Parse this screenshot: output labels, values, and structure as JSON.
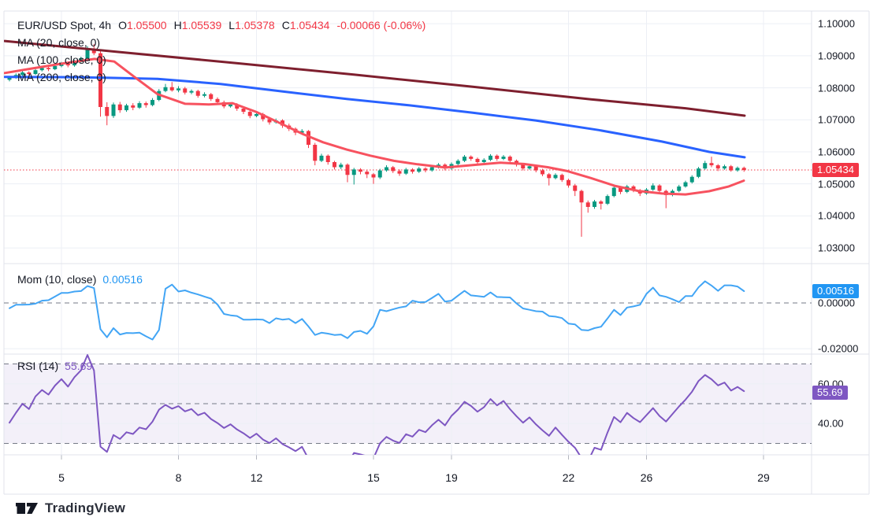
{
  "header": {
    "symbol": "EUR/USD Spot, 4h",
    "o_label": "O",
    "o": "1.05500",
    "h_label": "H",
    "h": "1.05539",
    "l_label": "L",
    "l": "1.05378",
    "c_label": "C",
    "c": "1.05434",
    "change": "-0.00066 (-0.06%)"
  },
  "legend": {
    "ma20": "MA (20, close, 0)",
    "ma100": "MA (100, close, 0)",
    "ma200": "MA (200, close, 0)",
    "mom_label": "Mom (10, close)",
    "mom_value": "0.00516",
    "rsi_label": "RSI (14)",
    "rsi_value": "55.69"
  },
  "badges": {
    "price": "1.05434",
    "mom": "0.00516",
    "rsi": "55.69"
  },
  "footer": {
    "logo_text": "TradingView"
  },
  "colors": {
    "up": "#089981",
    "down": "#f23645",
    "ma20": "#f7525f",
    "ma100": "#2962ff",
    "ma200": "#7e1f2e",
    "mom_line": "#42a5f5",
    "rsi_line": "#7e57c2",
    "rsi_band": "#7e57c2",
    "price_line": "#f23645",
    "text": "#131722",
    "grid": "#eceff5",
    "border": "#e0e3eb",
    "dashed": "#757a87",
    "stub": "#b2b5be"
  },
  "chart_data": {
    "type": "candlestick",
    "title": "EUR/USD Spot, 4h",
    "last_bar": {
      "open": 1.055,
      "high": 1.05539,
      "low": 1.05378,
      "close": 1.05434,
      "change": -0.00066,
      "change_pct": "-0.06%"
    },
    "current_price": 1.05434,
    "price_axis_ticks": [
      1.1,
      1.09,
      1.08,
      1.07,
      1.06,
      1.05,
      1.04,
      1.03
    ],
    "price_axis_labels": [
      "1.10000",
      "1.09000",
      "1.08000",
      "1.07000",
      "1.06000",
      "1.05000",
      "1.04000",
      "1.03000"
    ],
    "x_ticks": [
      {
        "i": 8,
        "label": "5"
      },
      {
        "i": 26,
        "label": "8"
      },
      {
        "i": 38,
        "label": "12"
      },
      {
        "i": 56,
        "label": "15"
      },
      {
        "i": 68,
        "label": "19"
      },
      {
        "i": 86,
        "label": "22"
      },
      {
        "i": 98,
        "label": "26"
      },
      {
        "i": 116,
        "label": "29"
      }
    ],
    "prehistory_closes": [
      1.085,
      1.0845,
      1.0852,
      1.0846,
      1.0855,
      1.0848,
      1.0856,
      1.085,
      1.0858,
      1.0852,
      1.0846,
      1.084,
      1.0832,
      1.0826
    ],
    "candles": [
      [
        1.0825,
        1.0836,
        1.082,
        1.0832
      ],
      [
        1.0832,
        1.0845,
        1.0828,
        1.084
      ],
      [
        1.084,
        1.0853,
        1.0836,
        1.0848
      ],
      [
        1.0848,
        1.0852,
        1.0838,
        1.0843
      ],
      [
        1.0843,
        1.086,
        1.084,
        1.0855
      ],
      [
        1.0855,
        1.0868,
        1.0851,
        1.0862
      ],
      [
        1.0862,
        1.0866,
        1.0852,
        1.0858
      ],
      [
        1.0858,
        1.0873,
        1.0855,
        1.0868
      ],
      [
        1.0868,
        1.0881,
        1.0864,
        1.0876
      ],
      [
        1.0876,
        1.088,
        1.0864,
        1.087
      ],
      [
        1.087,
        1.0887,
        1.0866,
        1.0882
      ],
      [
        1.0882,
        1.0897,
        1.0878,
        1.0892
      ],
      [
        1.0892,
        1.093,
        1.0888,
        1.0922
      ],
      [
        1.0922,
        1.0937,
        1.0902,
        1.0908
      ],
      [
        1.0908,
        1.092,
        1.071,
        1.074
      ],
      [
        1.074,
        1.0755,
        1.0683,
        1.0712
      ],
      [
        1.0712,
        1.0754,
        1.0706,
        1.0748
      ],
      [
        1.0748,
        1.0756,
        1.0722,
        1.073
      ],
      [
        1.073,
        1.075,
        1.0725,
        1.0745
      ],
      [
        1.0745,
        1.0752,
        1.073,
        1.0738
      ],
      [
        1.0738,
        1.0758,
        1.0734,
        1.0752
      ],
      [
        1.0752,
        1.0757,
        1.0738,
        1.0746
      ],
      [
        1.0746,
        1.0768,
        1.0742,
        1.0762
      ],
      [
        1.0762,
        1.0796,
        1.0758,
        1.079
      ],
      [
        1.079,
        1.0812,
        1.0786,
        1.0802
      ],
      [
        1.0802,
        1.0818,
        1.0788,
        1.0792
      ],
      [
        1.0792,
        1.0805,
        1.0786,
        1.0798
      ],
      [
        1.0798,
        1.0803,
        1.0779,
        1.0785
      ],
      [
        1.0785,
        1.0795,
        1.078,
        1.079
      ],
      [
        1.079,
        1.0794,
        1.0769,
        1.0775
      ],
      [
        1.0775,
        1.0786,
        1.077,
        1.078
      ],
      [
        1.078,
        1.0784,
        1.0759,
        1.0765
      ],
      [
        1.0765,
        1.077,
        1.0748,
        1.0755
      ],
      [
        1.0755,
        1.076,
        1.0736,
        1.0742
      ],
      [
        1.0742,
        1.0754,
        1.0738,
        1.0748
      ],
      [
        1.0748,
        1.0752,
        1.0728,
        1.0735
      ],
      [
        1.0735,
        1.074,
        1.0718,
        1.0725
      ],
      [
        1.0725,
        1.073,
        1.0705,
        1.0712
      ],
      [
        1.0712,
        1.0724,
        1.0708,
        1.0718
      ],
      [
        1.0718,
        1.0722,
        1.0695,
        1.0702
      ],
      [
        1.0702,
        1.0708,
        1.0685,
        1.0692
      ],
      [
        1.0692,
        1.0704,
        1.0688,
        1.0698
      ],
      [
        1.0698,
        1.0702,
        1.0675,
        1.0682
      ],
      [
        1.0682,
        1.0688,
        1.0665,
        1.0672
      ],
      [
        1.0672,
        1.0676,
        1.0652,
        1.066
      ],
      [
        1.066,
        1.0671,
        1.0655,
        1.0665
      ],
      [
        1.0665,
        1.0668,
        1.0612,
        1.0622
      ],
      [
        1.0622,
        1.0628,
        1.0558,
        1.0572
      ],
      [
        1.0572,
        1.0594,
        1.0568,
        1.0588
      ],
      [
        1.0588,
        1.0592,
        1.056,
        1.0568
      ],
      [
        1.0568,
        1.0572,
        1.0545,
        1.0552
      ],
      [
        1.0552,
        1.0566,
        1.0546,
        1.056
      ],
      [
        1.056,
        1.0564,
        1.0505,
        1.0528
      ],
      [
        1.0528,
        1.055,
        1.0498,
        1.0545
      ],
      [
        1.0545,
        1.0549,
        1.053,
        1.0538
      ],
      [
        1.0538,
        1.0543,
        1.0518,
        1.053
      ],
      [
        1.053,
        1.0534,
        1.05,
        1.052
      ],
      [
        1.052,
        1.0547,
        1.0515,
        1.0542
      ],
      [
        1.0542,
        1.0558,
        1.0538,
        1.0552
      ],
      [
        1.0552,
        1.0556,
        1.0534,
        1.054
      ],
      [
        1.054,
        1.0545,
        1.0525,
        1.0532
      ],
      [
        1.0532,
        1.055,
        1.0528,
        1.0545
      ],
      [
        1.0545,
        1.0549,
        1.0532,
        1.0538
      ],
      [
        1.0538,
        1.0553,
        1.0534,
        1.0548
      ],
      [
        1.0548,
        1.0552,
        1.0536,
        1.0542
      ],
      [
        1.0542,
        1.0557,
        1.0538,
        1.0552
      ],
      [
        1.0552,
        1.0565,
        1.0548,
        1.056
      ],
      [
        1.056,
        1.0564,
        1.0542,
        1.0548
      ],
      [
        1.0548,
        1.0567,
        1.0544,
        1.0562
      ],
      [
        1.0562,
        1.0577,
        1.0558,
        1.0572
      ],
      [
        1.0572,
        1.059,
        1.0568,
        1.0585
      ],
      [
        1.0585,
        1.0589,
        1.0572,
        1.0578
      ],
      [
        1.0578,
        1.0582,
        1.0562,
        1.0568
      ],
      [
        1.0568,
        1.058,
        1.0564,
        1.0575
      ],
      [
        1.0575,
        1.0593,
        1.0571,
        1.0588
      ],
      [
        1.0588,
        1.0592,
        1.0572,
        1.0578
      ],
      [
        1.0578,
        1.059,
        1.0574,
        1.0585
      ],
      [
        1.0585,
        1.0589,
        1.0566,
        1.0572
      ],
      [
        1.0572,
        1.0576,
        1.0554,
        1.056
      ],
      [
        1.056,
        1.0565,
        1.0542,
        1.0548
      ],
      [
        1.0548,
        1.056,
        1.0544,
        1.0555
      ],
      [
        1.0555,
        1.0559,
        1.0536,
        1.0542
      ],
      [
        1.0542,
        1.0547,
        1.0524,
        1.053
      ],
      [
        1.053,
        1.0534,
        1.0495,
        1.0518
      ],
      [
        1.0518,
        1.0533,
        1.0514,
        1.0528
      ],
      [
        1.0528,
        1.0532,
        1.0506,
        1.0512
      ],
      [
        1.0512,
        1.0516,
        1.0488,
        1.0495
      ],
      [
        1.0495,
        1.05,
        1.0462,
        1.0478
      ],
      [
        1.0478,
        1.0482,
        1.0335,
        1.0442
      ],
      [
        1.0442,
        1.0448,
        1.041,
        1.0428
      ],
      [
        1.0428,
        1.045,
        1.0422,
        1.0445
      ],
      [
        1.0445,
        1.0449,
        1.042,
        1.0438
      ],
      [
        1.0438,
        1.0467,
        1.0434,
        1.0462
      ],
      [
        1.0462,
        1.0493,
        1.0458,
        1.0488
      ],
      [
        1.0488,
        1.0492,
        1.0468,
        1.0475
      ],
      [
        1.0475,
        1.0497,
        1.0471,
        1.0492
      ],
      [
        1.0492,
        1.0496,
        1.0474,
        1.048
      ],
      [
        1.048,
        1.0484,
        1.0462,
        1.047
      ],
      [
        1.047,
        1.0487,
        1.0466,
        1.0482
      ],
      [
        1.0482,
        1.0502,
        1.0478,
        1.0495
      ],
      [
        1.0495,
        1.0499,
        1.0472,
        1.0478
      ],
      [
        1.0478,
        1.0482,
        1.0424,
        1.0465
      ],
      [
        1.0465,
        1.0483,
        1.0461,
        1.0478
      ],
      [
        1.0478,
        1.0497,
        1.0474,
        1.04918
      ],
      [
        1.04918,
        1.051,
        1.0488,
        1.0505
      ],
      [
        1.0505,
        1.0527,
        1.0501,
        1.0522
      ],
      [
        1.0522,
        1.0553,
        1.0518,
        1.0548
      ],
      [
        1.0548,
        1.0572,
        1.0544,
        1.0565
      ],
      [
        1.0565,
        1.0585,
        1.0552,
        1.0558
      ],
      [
        1.0558,
        1.0562,
        1.054,
        1.0548
      ],
      [
        1.0548,
        1.056,
        1.0544,
        1.0555
      ],
      [
        1.0555,
        1.0559,
        1.0538,
        1.0542
      ],
      [
        1.0542,
        1.0554,
        1.0538,
        1.055
      ],
      [
        1.055,
        1.05539,
        1.05378,
        1.05434
      ]
    ],
    "overlays": {
      "ma20": {
        "period": 20,
        "source": "close",
        "offset": 0,
        "points": [
          [
            6,
            1.0846
          ],
          [
            40,
            1.086
          ],
          [
            80,
            1.0876
          ],
          [
            120,
            1.089
          ],
          [
            145,
            1.0882
          ],
          [
            170,
            1.0835
          ],
          [
            200,
            1.078
          ],
          [
            235,
            1.075
          ],
          [
            265,
            1.0748
          ],
          [
            295,
            1.0752
          ],
          [
            325,
            1.0725
          ],
          [
            355,
            1.069
          ],
          [
            385,
            1.0655
          ],
          [
            410,
            1.063
          ],
          [
            440,
            1.0607
          ],
          [
            470,
            1.0588
          ],
          [
            500,
            1.0572
          ],
          [
            530,
            1.0561
          ],
          [
            565,
            1.0551
          ],
          [
            600,
            1.0559
          ],
          [
            635,
            1.0566
          ],
          [
            665,
            1.0562
          ],
          [
            695,
            1.0552
          ],
          [
            720,
            1.054
          ],
          [
            750,
            1.0518
          ],
          [
            780,
            1.0494
          ],
          [
            810,
            1.0478
          ],
          [
            840,
            1.047
          ],
          [
            870,
            1.0467
          ],
          [
            900,
            1.0477
          ],
          [
            925,
            1.0492
          ],
          [
            944,
            1.051
          ]
        ]
      },
      "ma100": {
        "period": 100,
        "source": "close",
        "offset": 0,
        "points": [
          [
            6,
            1.0834
          ],
          [
            100,
            1.0833
          ],
          [
            200,
            1.0828
          ],
          [
            280,
            1.0812
          ],
          [
            360,
            1.0788
          ],
          [
            440,
            1.0765
          ],
          [
            520,
            1.0745
          ],
          [
            600,
            1.0722
          ],
          [
            680,
            1.0698
          ],
          [
            760,
            1.0668
          ],
          [
            840,
            1.0632
          ],
          [
            900,
            1.06
          ],
          [
            945,
            1.0583
          ]
        ]
      },
      "ma200": {
        "period": 200,
        "source": "close",
        "offset": 0,
        "points": [
          [
            6,
            1.0946
          ],
          [
            150,
            1.0912
          ],
          [
            300,
            1.0877
          ],
          [
            450,
            1.0841
          ],
          [
            600,
            1.0803
          ],
          [
            750,
            1.0764
          ],
          [
            870,
            1.0736
          ],
          [
            945,
            1.0713
          ]
        ]
      }
    },
    "momentum": {
      "period": 10,
      "source": "close",
      "last": 0.00516,
      "axis_ticks": [
        {
          "v": 0,
          "label": "0.00000"
        },
        {
          "v": -0.02,
          "label": "-0.02000"
        }
      ]
    },
    "rsi": {
      "period": 14,
      "last": 55.69,
      "levels": [
        70,
        50,
        30
      ],
      "axis_ticks": [
        {
          "v": 60,
          "label": "60.00"
        },
        {
          "v": 40,
          "label": "40.00"
        }
      ]
    }
  }
}
